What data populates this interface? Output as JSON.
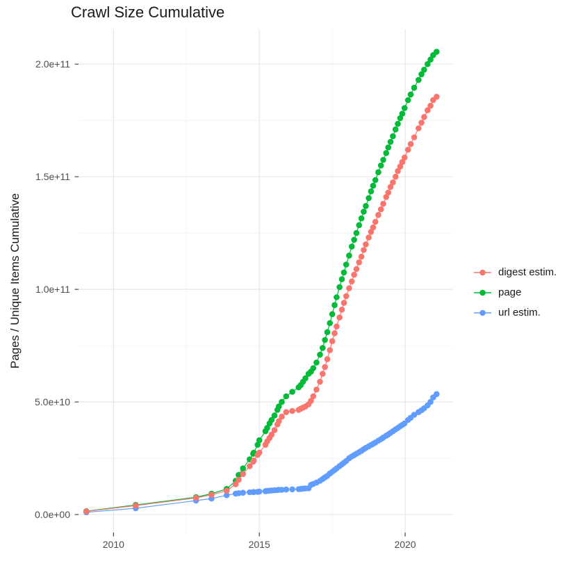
{
  "page": {
    "title": "Crawl Size Cumulative"
  },
  "colors": {
    "background": "#ffffff",
    "grid_major": "#e6e6e6",
    "grid_minor": "#f2f2f2",
    "tick": "#333333",
    "tick_label": "#4d4d4d",
    "text": "#1a1a1a"
  },
  "chart_data": {
    "type": "line",
    "title": "Crawl Size Cumulative",
    "xlabel": "",
    "ylabel": "Pages / Unique Items Cumulative",
    "grid": true,
    "marker": "point",
    "legend_position": "right",
    "xlim": [
      2008.8,
      2021.62
    ],
    "ylim": [
      -8000000000.0,
      215500000000.0
    ],
    "x_breaks": [
      2010,
      2015,
      2020
    ],
    "x_tick_labels": [
      "2010",
      "2015",
      "2020"
    ],
    "x_minor_breaks": [
      2012.5,
      2017.5
    ],
    "y_breaks": [
      0,
      50000000000.0,
      100000000000.0,
      150000000000.0,
      200000000000.0
    ],
    "y_tick_labels": [
      "0.0e+00",
      "5.0e+10",
      "1.0e+11",
      "1.5e+11",
      "2.0e+11"
    ],
    "y_minor_breaks": [
      25000000000.0,
      75000000000.0,
      125000000000.0,
      175000000000.0
    ],
    "x": [
      2009.07,
      2010.76,
      2012.83,
      2013.36,
      2013.88,
      2014.19,
      2014.29,
      2014.44,
      2014.67,
      2014.79,
      2014.81,
      2014.94,
      2015.0,
      2015.21,
      2015.27,
      2015.35,
      2015.42,
      2015.52,
      2015.62,
      2015.67,
      2015.77,
      2015.92,
      2016.13,
      2016.35,
      2016.42,
      2016.5,
      2016.58,
      2016.69,
      2016.77,
      2016.85,
      2016.96,
      2017.08,
      2017.17,
      2017.25,
      2017.33,
      2017.42,
      2017.5,
      2017.58,
      2017.65,
      2017.75,
      2017.83,
      2017.9,
      2017.98,
      2018.08,
      2018.17,
      2018.25,
      2018.33,
      2018.42,
      2018.5,
      2018.58,
      2018.65,
      2018.75,
      2018.83,
      2018.9,
      2018.98,
      2019.08,
      2019.17,
      2019.25,
      2019.35,
      2019.42,
      2019.5,
      2019.58,
      2019.67,
      2019.75,
      2019.83,
      2019.9,
      2019.98,
      2020.1,
      2020.19,
      2020.31,
      2020.46,
      2020.56,
      2020.65,
      2020.77,
      2020.87,
      2020.96,
      2021.08
    ],
    "series": [
      {
        "name": "digest estim.",
        "color": "#F8766D",
        "values": [
          1400000000.0,
          4000000000.0,
          7400000000.0,
          8800000000.0,
          10600000000.0,
          13500000000.0,
          15500000000.0,
          18000000000.0,
          21500000000.0,
          23500000000.0,
          24000000000.0,
          26500000000.0,
          27500000000.0,
          31000000000.0,
          32500000000.0,
          34000000000.0,
          35500000000.0,
          37500000000.0,
          40000000000.0,
          41500000000.0,
          43500000000.0,
          45500000000.0,
          46000000000.0,
          46500000000.0,
          47000000000.0,
          47500000000.0,
          48000000000.0,
          49000000000.0,
          50500000000.0,
          52500000000.0,
          55500000000.0,
          59000000000.0,
          62500000000.0,
          65500000000.0,
          69000000000.0,
          73000000000.0,
          77000000000.0,
          80500000000.0,
          83500000000.0,
          87500000000.0,
          91000000000.0,
          94000000000.0,
          97000000000.0,
          100500000000.0,
          103500000000.0,
          106500000000.0,
          109000000000.0,
          112000000000.0,
          114500000000.0,
          117500000000.0,
          120000000000.0,
          123000000000.0,
          125500000000.0,
          127500000000.0,
          130000000000.0,
          133000000000.0,
          135500000000.0,
          138000000000.0,
          141000000000.0,
          143000000000.0,
          145500000000.0,
          147500000000.0,
          150000000000.0,
          152500000000.0,
          154500000000.0,
          156500000000.0,
          158500000000.0,
          162000000000.0,
          164500000000.0,
          167500000000.0,
          171500000000.0,
          174000000000.0,
          176500000000.0,
          179500000000.0,
          181500000000.0,
          184000000000.0,
          185500000000.0
        ]
      },
      {
        "name": "page",
        "color": "#00BA38",
        "values": [
          1500000000.0,
          4300000000.0,
          7700000000.0,
          9300000000.0,
          11400000000.0,
          15000000000.0,
          17600000000.0,
          20500000000.0,
          24500000000.0,
          27000000000.0,
          27500000000.0,
          31000000000.0,
          33000000000.0,
          37000000000.0,
          38500000000.0,
          40500000000.0,
          42000000000.0,
          44000000000.0,
          46500000000.0,
          48000000000.0,
          50000000000.0,
          52500000000.0,
          54500000000.0,
          56500000000.0,
          57500000000.0,
          59000000000.0,
          60500000000.0,
          62500000000.0,
          63500000000.0,
          65000000000.0,
          67500000000.0,
          71000000000.0,
          74000000000.0,
          77500000000.0,
          81000000000.0,
          85000000000.0,
          89000000000.0,
          93000000000.0,
          96500000000.0,
          101000000000.0,
          104500000000.0,
          107500000000.0,
          111000000000.0,
          115000000000.0,
          119000000000.0,
          122000000000.0,
          125000000000.0,
          128500000000.0,
          131500000000.0,
          134500000000.0,
          137000000000.0,
          140500000000.0,
          143500000000.0,
          146000000000.0,
          148500000000.0,
          152000000000.0,
          155000000000.0,
          157500000000.0,
          160500000000.0,
          163000000000.0,
          165500000000.0,
          168000000000.0,
          171000000000.0,
          173500000000.0,
          176000000000.0,
          178000000000.0,
          180500000000.0,
          184000000000.0,
          186500000000.0,
          189500000000.0,
          193000000000.0,
          195500000000.0,
          197500000000.0,
          200000000000.0,
          202000000000.0,
          204000000000.0,
          205500000000.0
        ]
      },
      {
        "name": "url estim.",
        "color": "#619CFF",
        "values": [
          1000000000.0,
          2800000000.0,
          6200000000.0,
          7100000000.0,
          8600000000.0,
          9300000000.0,
          9500000000.0,
          9700000000.0,
          9900000000.0,
          10000000000.0,
          10000000000.0,
          10100000000.0,
          10200000000.0,
          10400000000.0,
          10500000000.0,
          10600000000.0,
          10700000000.0,
          10800000000.0,
          10900000000.0,
          11000000000.0,
          11000000000.0,
          11100000000.0,
          11200000000.0,
          11300000000.0,
          11400000000.0,
          11500000000.0,
          11600000000.0,
          11700000000.0,
          13200000000.0,
          13600000000.0,
          14200000000.0,
          15000000000.0,
          15800000000.0,
          16500000000.0,
          17200000000.0,
          18200000000.0,
          19000000000.0,
          19800000000.0,
          20500000000.0,
          21500000000.0,
          22300000000.0,
          23000000000.0,
          23800000000.0,
          25000000000.0,
          25800000000.0,
          26400000000.0,
          27000000000.0,
          27700000000.0,
          28300000000.0,
          29000000000.0,
          29600000000.0,
          30300000000.0,
          30900000000.0,
          31400000000.0,
          32000000000.0,
          32800000000.0,
          33500000000.0,
          34200000000.0,
          35000000000.0,
          35600000000.0,
          36300000000.0,
          37000000000.0,
          37800000000.0,
          38500000000.0,
          39200000000.0,
          39800000000.0,
          40500000000.0,
          42000000000.0,
          43000000000.0,
          44300000000.0,
          45500000000.0,
          46300000000.0,
          47200000000.0,
          48500000000.0,
          50000000000.0,
          52000000000.0,
          53500000000.0
        ]
      }
    ]
  }
}
